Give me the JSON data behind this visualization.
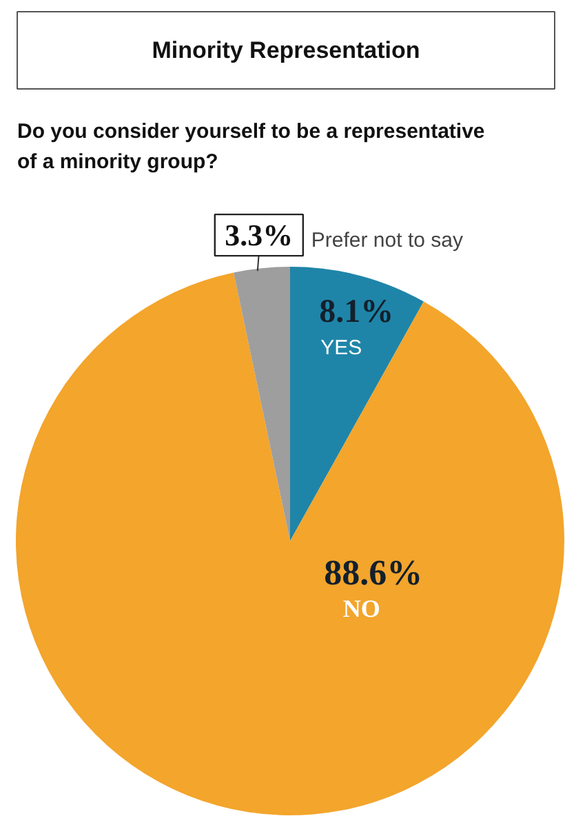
{
  "chart_data": {
    "type": "pie",
    "title": "Minority Representation",
    "subtitle": "Do you consider yourself to be a representative of a minority group?",
    "categories": [
      "YES",
      "NO",
      "Prefer not to say"
    ],
    "values": [
      8.1,
      88.6,
      3.3
    ],
    "colors": [
      "#1f85a8",
      "#f3a52c",
      "#9e9e9e"
    ],
    "value_labels": [
      "8.1%",
      "88.6%",
      "3.3%"
    ]
  }
}
